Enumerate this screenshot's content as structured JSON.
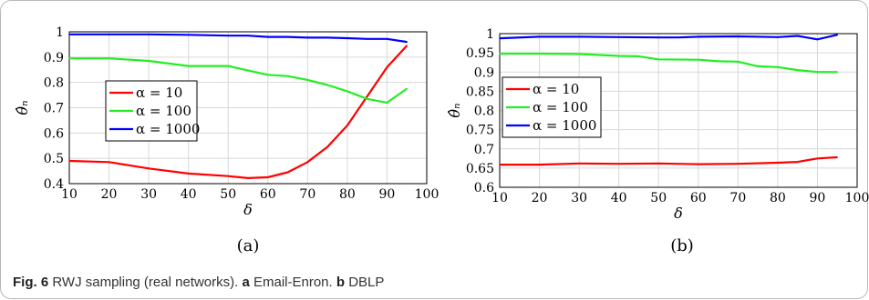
{
  "figure": {
    "caption_label": "Fig. 6",
    "caption_text": "RWJ sampling (real networks).",
    "caption_a_letter": "a",
    "caption_a_text": "Email-Enron.",
    "caption_b_letter": "b",
    "caption_b_text": "DBLP"
  },
  "colors": {
    "alpha_10": "#ff0000",
    "alpha_100": "#22ee22",
    "alpha_1000": "#0000ff"
  },
  "chart_data": [
    {
      "type": "line",
      "panel_label": "(a)",
      "xlabel": "δ",
      "ylabel": "θ̂ₙ",
      "xlim": [
        10,
        100
      ],
      "ylim": [
        0.4,
        1.0
      ],
      "xticks": [
        "10",
        "20",
        "30",
        "40",
        "50",
        "60",
        "70",
        "80",
        "90",
        "100"
      ],
      "yticks": [
        "0.4",
        "0.5",
        "0.6",
        "0.7",
        "0.8",
        "0.9",
        "1"
      ],
      "grid": true,
      "legend": "center-left",
      "series": [
        {
          "name": "α = 10",
          "color": "#ff0000",
          "x": [
            10,
            20,
            30,
            40,
            50,
            55,
            60,
            65,
            70,
            75,
            80,
            85,
            90,
            95
          ],
          "y": [
            0.49,
            0.485,
            0.46,
            0.44,
            0.43,
            0.422,
            0.425,
            0.445,
            0.485,
            0.545,
            0.63,
            0.745,
            0.86,
            0.945
          ]
        },
        {
          "name": "α = 100",
          "color": "#22ee22",
          "x": [
            10,
            20,
            30,
            40,
            50,
            60,
            65,
            70,
            75,
            80,
            85,
            90,
            95
          ],
          "y": [
            0.895,
            0.895,
            0.885,
            0.865,
            0.865,
            0.83,
            0.825,
            0.81,
            0.79,
            0.765,
            0.735,
            0.72,
            0.775
          ]
        },
        {
          "name": "α = 1000",
          "color": "#0000ff",
          "x": [
            10,
            20,
            30,
            40,
            50,
            55,
            60,
            65,
            70,
            75,
            80,
            85,
            90,
            95
          ],
          "y": [
            0.99,
            0.99,
            0.99,
            0.988,
            0.985,
            0.985,
            0.98,
            0.98,
            0.977,
            0.977,
            0.975,
            0.972,
            0.972,
            0.96
          ]
        }
      ]
    },
    {
      "type": "line",
      "panel_label": "(b)",
      "xlabel": "δ",
      "ylabel": "θ̂ₙ",
      "xlim": [
        10,
        100
      ],
      "ylim": [
        0.6,
        1.0
      ],
      "xticks": [
        "10",
        "20",
        "30",
        "40",
        "50",
        "60",
        "70",
        "80",
        "90",
        "100"
      ],
      "yticks": [
        "0.6",
        "0.65",
        "0.7",
        "0.75",
        "0.8",
        "0.85",
        "0.9",
        "0.95",
        "1"
      ],
      "grid": true,
      "legend": "center-left",
      "series": [
        {
          "name": "α = 10",
          "color": "#ff0000",
          "x": [
            10,
            20,
            30,
            40,
            50,
            60,
            70,
            80,
            85,
            90,
            95
          ],
          "y": [
            0.659,
            0.659,
            0.662,
            0.661,
            0.662,
            0.66,
            0.661,
            0.664,
            0.666,
            0.675,
            0.678
          ]
        },
        {
          "name": "α = 100",
          "color": "#22ee22",
          "x": [
            10,
            20,
            30,
            40,
            45,
            50,
            60,
            65,
            70,
            75,
            80,
            85,
            90,
            95
          ],
          "y": [
            0.948,
            0.948,
            0.947,
            0.942,
            0.941,
            0.933,
            0.932,
            0.928,
            0.927,
            0.915,
            0.913,
            0.905,
            0.9,
            0.9
          ]
        },
        {
          "name": "α = 1000",
          "color": "#0000ff",
          "x": [
            10,
            20,
            30,
            40,
            50,
            55,
            60,
            70,
            80,
            85,
            90,
            95
          ],
          "y": [
            0.988,
            0.992,
            0.992,
            0.991,
            0.99,
            0.99,
            0.992,
            0.993,
            0.991,
            0.994,
            0.985,
            0.997
          ]
        }
      ]
    }
  ]
}
